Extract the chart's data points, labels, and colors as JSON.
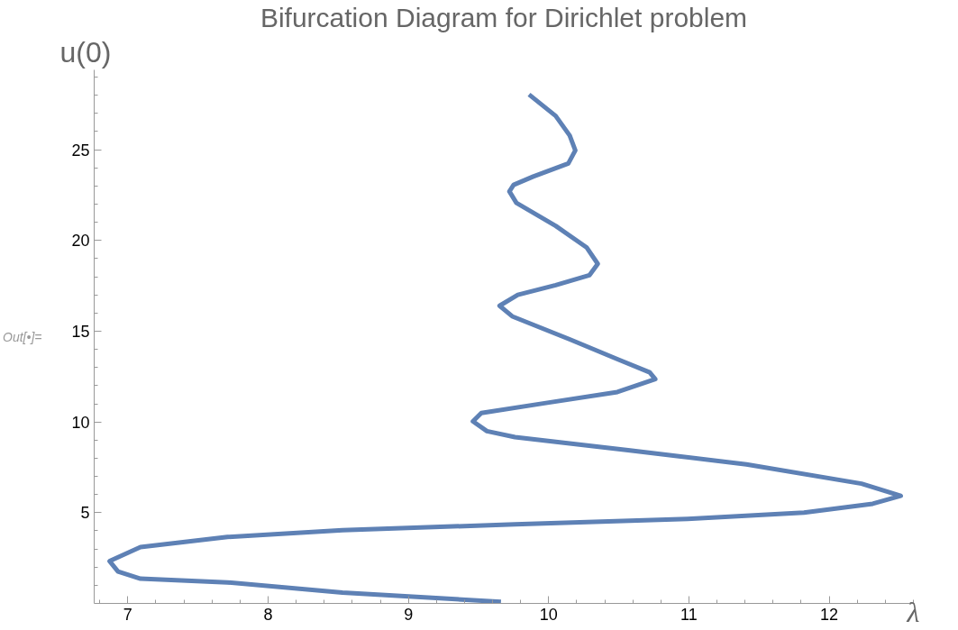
{
  "chart_data": {
    "type": "line",
    "title": "Bifurcation Diagram for Dirichlet problem",
    "xlabel": "λ",
    "ylabel": "u(0)",
    "annotations": [
      "Out[•]="
    ],
    "series": [
      {
        "color": "#5e81b5",
        "x": [
          9.66,
          8.53,
          7.71,
          7.09,
          6.93,
          6.87,
          7.09,
          7.71,
          8.53,
          9.76,
          10.99,
          11.82,
          12.31,
          12.51,
          12.23,
          11.41,
          10.58,
          9.76,
          9.56,
          9.46,
          9.52,
          9.97,
          10.49,
          10.76,
          10.72,
          10.49,
          10.15,
          9.74,
          9.65,
          9.78,
          10.05,
          10.29,
          10.35,
          10.27,
          10.05,
          9.77,
          9.72,
          9.75,
          9.89,
          10.14,
          10.19,
          10.15,
          10.05,
          9.86
        ],
        "values": [
          0.09,
          0.6,
          1.16,
          1.36,
          1.76,
          2.33,
          3.1,
          3.66,
          4.03,
          4.36,
          4.66,
          5.0,
          5.49,
          5.93,
          6.6,
          7.66,
          8.43,
          9.16,
          9.49,
          10.03,
          10.49,
          11.03,
          11.65,
          12.36,
          12.73,
          13.46,
          14.55,
          15.82,
          16.4,
          17.0,
          17.54,
          18.08,
          18.71,
          19.62,
          20.8,
          22.07,
          22.7,
          23.06,
          23.52,
          24.24,
          24.96,
          25.78,
          26.86,
          28.04
        ]
      }
    ],
    "xlim": [
      6.76,
      12.6
    ],
    "ylim": [
      0,
      29.4
    ],
    "xticks": [
      7,
      8,
      9,
      10,
      11,
      12
    ],
    "yticks": [
      5,
      10,
      15,
      20,
      25
    ],
    "grid": false,
    "line_style": "solid",
    "marker": "none"
  }
}
